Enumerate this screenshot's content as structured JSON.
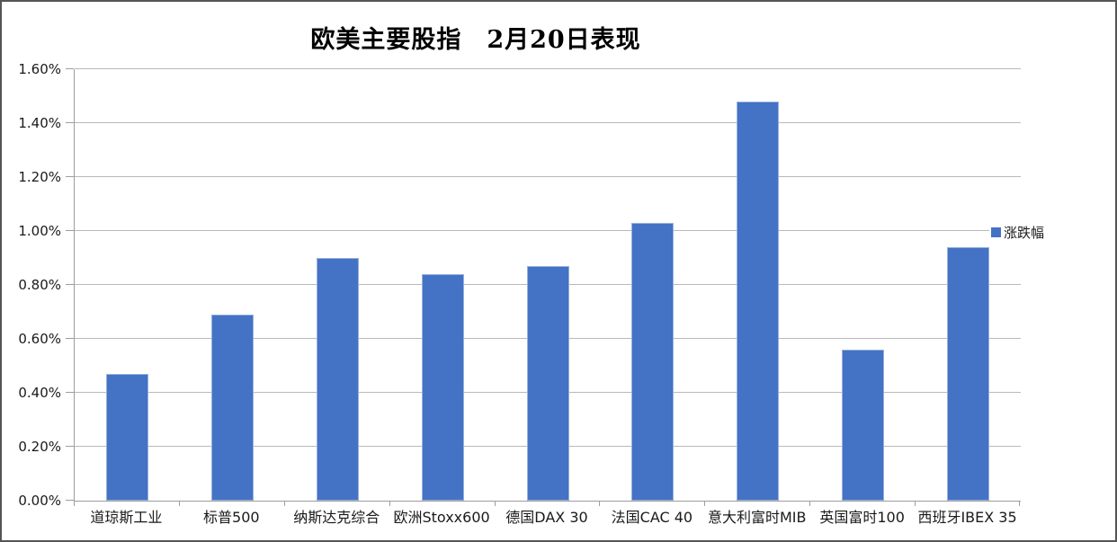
{
  "window": {
    "background": "#ffffff",
    "border_color": "#555555"
  },
  "chart_data": {
    "type": "bar",
    "title": "欧美主要股指　2月20日表现",
    "categories": [
      "道琼斯工业",
      "标普500",
      "纳斯达克综合",
      "欧洲Stoxx600",
      "德国DAX 30",
      "法国CAC 40",
      "意大利富时MIB",
      "英国富时100",
      "西班牙IBEX 35"
    ],
    "series": [
      {
        "name": "涨跌幅",
        "values": [
          0.47,
          0.69,
          0.9,
          0.84,
          0.87,
          1.03,
          1.48,
          0.56,
          0.94
        ]
      }
    ],
    "value_unit": "%",
    "ylim": [
      0,
      1.6
    ],
    "ytick_step": 0.2,
    "ytick_labels": [
      "0.00%",
      "0.20%",
      "0.40%",
      "0.60%",
      "0.80%",
      "1.00%",
      "1.20%",
      "1.40%",
      "1.60%"
    ],
    "grid": true,
    "legend_position": "right",
    "bar_color": "#4472C4",
    "gridline_color": "#b9b9b9",
    "axis_color": "#9d9d9d"
  }
}
